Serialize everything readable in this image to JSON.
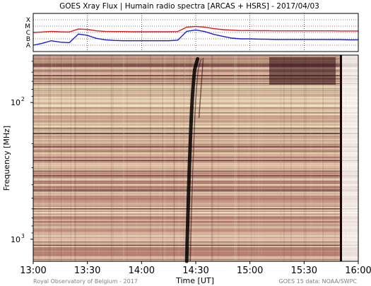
{
  "title": "GOES Xray Flux | Humain radio spectra [ARCAS + HSRS] - 2017/04/03",
  "credits": {
    "left": "Royal Observatory of Belgium - 2017",
    "right": "GOES 15 data: NOAA/SWPC"
  },
  "colors": {
    "goes_long": "#e4191b",
    "goes_short": "#1c1cd8",
    "spectrogram_low": "#f5ecd0",
    "spectrogram_mid": "#c89b86",
    "spectrogram_high": "#2e080c",
    "spectrogram_saturated": "#000000"
  },
  "chart_data": [
    {
      "type": "line",
      "x_unit": "UT time",
      "xlim": [
        "13:00",
        "16:00"
      ],
      "ylim": [
        1e-09,
        0.001
      ],
      "y_scale": "log",
      "flare_classes": [
        "X",
        "M",
        "C",
        "B",
        "A"
      ],
      "grid": true,
      "series": [
        {
          "x": [
            "13:00",
            "13:05",
            "13:10",
            "13:15",
            "13:20",
            "13:25",
            "13:30",
            "13:35",
            "13:40",
            "13:45",
            "13:50",
            "13:55",
            "14:00",
            "14:05",
            "14:10",
            "14:15",
            "14:20",
            "14:25",
            "14:30",
            "14:35",
            "14:40",
            "14:45",
            "14:50",
            "14:55",
            "15:00",
            "15:05",
            "15:10",
            "15:15",
            "15:20",
            "15:25",
            "15:30",
            "15:35",
            "15:40",
            "15:45",
            "15:50",
            "15:55",
            "16:00"
          ],
          "values": [
            1e-06,
            1.2e-06,
            1.5e-06,
            1.3e-06,
            1.2e-06,
            3.5e-06,
            3e-06,
            1.8e-06,
            1.5e-06,
            1.4e-06,
            1.4e-06,
            1.3e-06,
            1.3e-06,
            1.3e-06,
            1.3e-06,
            1.3e-06,
            1.4e-06,
            7e-06,
            9e-06,
            7e-06,
            4e-06,
            2.8e-06,
            2.3e-06,
            2e-06,
            2e-06,
            1.9e-06,
            1.9e-06,
            1.8e-06,
            1.8e-06,
            1.8e-06,
            1.8e-06,
            1.8e-06,
            1.8e-06,
            1.8e-06,
            1.7e-06,
            1.7e-06,
            1.7e-06
          ]
        },
        {
          "x": [
            "13:00",
            "13:05",
            "13:10",
            "13:15",
            "13:20",
            "13:25",
            "13:30",
            "13:35",
            "13:40",
            "13:45",
            "13:50",
            "13:55",
            "14:00",
            "14:05",
            "14:10",
            "14:15",
            "14:20",
            "14:25",
            "14:30",
            "14:35",
            "14:40",
            "14:45",
            "14:50",
            "14:55",
            "15:00",
            "15:05",
            "15:10",
            "15:15",
            "15:20",
            "15:25",
            "15:30",
            "15:35",
            "15:40",
            "15:45",
            "15:50",
            "15:55",
            "16:00"
          ],
          "values": [
            1e-08,
            2e-08,
            5e-08,
            3e-08,
            2.5e-08,
            5.5e-07,
            3.5e-07,
            1.2e-07,
            7e-08,
            5.5e-08,
            5e-08,
            5e-08,
            5e-08,
            5e-08,
            5e-08,
            5e-08,
            6e-08,
            1.5e-06,
            2.5e-06,
            1.4e-06,
            5e-07,
            2.5e-07,
            1.3e-07,
            1e-07,
            1e-07,
            9e-08,
            8.5e-08,
            8e-08,
            8e-08,
            8e-08,
            8e-08,
            8e-08,
            8e-08,
            7.5e-08,
            7.5e-08,
            7e-08,
            7e-08
          ]
        }
      ]
    },
    {
      "type": "heatmap",
      "xlabel": "Time [UT]",
      "ylabel": "Frequency [MHz]",
      "xlim": [
        "13:00",
        "16:00"
      ],
      "x_ticks": [
        "13:00",
        "13:30",
        "14:00",
        "14:30",
        "15:00",
        "15:30",
        "16:00"
      ],
      "y_scale": "log",
      "ylim_mhz": [
        1450,
        45
      ],
      "y_ticks": [
        {
          "base": "10",
          "exp": "2",
          "value_mhz": 100
        },
        {
          "base": "10",
          "exp": "3",
          "value_mhz": 1000
        }
      ],
      "burst": {
        "start": "14:25",
        "end": "14:31",
        "low_mhz": 48,
        "high_mhz": 1450
      },
      "data_gap": {
        "start": "15:51",
        "end": "16:00",
        "low_mhz": 48,
        "high_mhz": 1450
      }
    }
  ]
}
